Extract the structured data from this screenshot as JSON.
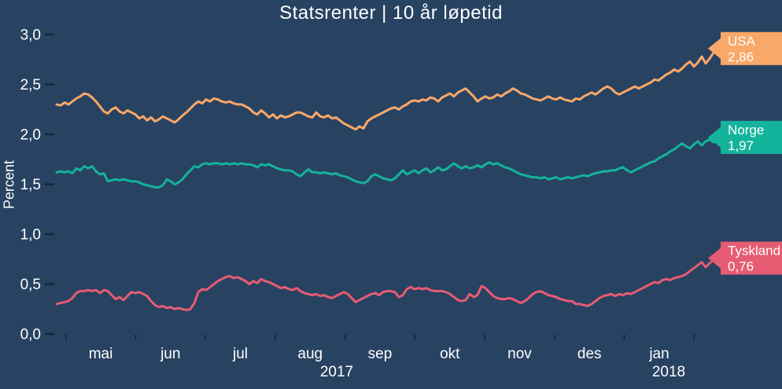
{
  "title": "Statsrenter | 10 år løpetid",
  "colors": {
    "background": "#284262",
    "text": "#ffffff",
    "tick": "#15253a",
    "usa": "#f8a868",
    "norge": "#14b39b",
    "tyskland": "#e65c72"
  },
  "chart_data": {
    "type": "line",
    "title": "Statsrenter | 10 år løpetid",
    "ylabel": "Percent",
    "ylim": [
      0.0,
      3.0
    ],
    "grid": false,
    "legend_position": "right-end-tags",
    "ytick_values": [
      0,
      0.5,
      1,
      1.5,
      2,
      2.5,
      3
    ],
    "ytick_labels": [
      "0,0",
      "0,5",
      "1,0",
      "1,5",
      "2,0",
      "2,5",
      "3,0"
    ],
    "xtick_labels": [
      "mai",
      "jun",
      "jul",
      "aug",
      "sep",
      "okt",
      "nov",
      "des",
      "jan"
    ],
    "year_labels": [
      "2017",
      "2018"
    ],
    "series": [
      {
        "name": "USA",
        "end_label": "2,86",
        "end_value": 2.86,
        "color": "#f8a868",
        "values": [
          2.3,
          2.29,
          2.32,
          2.3,
          2.33,
          2.36,
          2.38,
          2.41,
          2.4,
          2.37,
          2.33,
          2.28,
          2.23,
          2.21,
          2.25,
          2.27,
          2.23,
          2.21,
          2.24,
          2.22,
          2.2,
          2.16,
          2.18,
          2.14,
          2.17,
          2.13,
          2.15,
          2.18,
          2.16,
          2.14,
          2.12,
          2.15,
          2.19,
          2.22,
          2.26,
          2.3,
          2.33,
          2.31,
          2.35,
          2.33,
          2.36,
          2.35,
          2.33,
          2.32,
          2.33,
          2.31,
          2.3,
          2.3,
          2.28,
          2.26,
          2.22,
          2.2,
          2.24,
          2.21,
          2.17,
          2.2,
          2.16,
          2.19,
          2.17,
          2.18,
          2.2,
          2.22,
          2.22,
          2.2,
          2.18,
          2.17,
          2.22,
          2.18,
          2.17,
          2.19,
          2.16,
          2.17,
          2.14,
          2.11,
          2.09,
          2.07,
          2.05,
          2.08,
          2.06,
          2.13,
          2.16,
          2.18,
          2.2,
          2.22,
          2.24,
          2.26,
          2.27,
          2.25,
          2.28,
          2.3,
          2.33,
          2.34,
          2.33,
          2.35,
          2.34,
          2.37,
          2.36,
          2.33,
          2.37,
          2.39,
          2.41,
          2.38,
          2.42,
          2.44,
          2.46,
          2.42,
          2.38,
          2.33,
          2.36,
          2.38,
          2.36,
          2.37,
          2.4,
          2.38,
          2.41,
          2.43,
          2.46,
          2.44,
          2.41,
          2.4,
          2.38,
          2.36,
          2.35,
          2.34,
          2.36,
          2.38,
          2.36,
          2.35,
          2.37,
          2.35,
          2.34,
          2.33,
          2.36,
          2.35,
          2.38,
          2.4,
          2.42,
          2.4,
          2.43,
          2.46,
          2.48,
          2.46,
          2.42,
          2.4,
          2.42,
          2.44,
          2.46,
          2.48,
          2.46,
          2.48,
          2.5,
          2.52,
          2.55,
          2.54,
          2.57,
          2.6,
          2.62,
          2.65,
          2.63,
          2.66,
          2.7,
          2.73,
          2.68,
          2.72,
          2.78,
          2.71,
          2.76,
          2.82,
          2.86
        ]
      },
      {
        "name": "Norge",
        "end_label": "1,97",
        "end_value": 1.97,
        "color": "#14b39b",
        "values": [
          1.62,
          1.63,
          1.62,
          1.63,
          1.61,
          1.66,
          1.64,
          1.68,
          1.66,
          1.68,
          1.63,
          1.6,
          1.61,
          1.53,
          1.54,
          1.55,
          1.54,
          1.55,
          1.54,
          1.53,
          1.53,
          1.52,
          1.5,
          1.49,
          1.48,
          1.47,
          1.47,
          1.49,
          1.55,
          1.53,
          1.5,
          1.52,
          1.55,
          1.6,
          1.64,
          1.68,
          1.67,
          1.7,
          1.71,
          1.7,
          1.71,
          1.71,
          1.7,
          1.71,
          1.7,
          1.71,
          1.7,
          1.71,
          1.7,
          1.7,
          1.69,
          1.67,
          1.7,
          1.69,
          1.7,
          1.68,
          1.66,
          1.65,
          1.64,
          1.64,
          1.63,
          1.6,
          1.58,
          1.62,
          1.65,
          1.62,
          1.62,
          1.61,
          1.62,
          1.61,
          1.6,
          1.61,
          1.59,
          1.58,
          1.57,
          1.55,
          1.53,
          1.52,
          1.51,
          1.53,
          1.58,
          1.6,
          1.58,
          1.56,
          1.55,
          1.54,
          1.56,
          1.6,
          1.64,
          1.6,
          1.62,
          1.64,
          1.61,
          1.64,
          1.66,
          1.62,
          1.64,
          1.67,
          1.64,
          1.65,
          1.68,
          1.71,
          1.68,
          1.66,
          1.68,
          1.66,
          1.67,
          1.69,
          1.67,
          1.7,
          1.72,
          1.7,
          1.71,
          1.69,
          1.67,
          1.66,
          1.64,
          1.62,
          1.6,
          1.59,
          1.58,
          1.57,
          1.57,
          1.56,
          1.57,
          1.55,
          1.56,
          1.57,
          1.55,
          1.56,
          1.57,
          1.56,
          1.57,
          1.58,
          1.59,
          1.58,
          1.6,
          1.61,
          1.62,
          1.63,
          1.63,
          1.64,
          1.64,
          1.66,
          1.67,
          1.64,
          1.62,
          1.64,
          1.66,
          1.68,
          1.7,
          1.72,
          1.73,
          1.76,
          1.78,
          1.8,
          1.83,
          1.85,
          1.88,
          1.91,
          1.88,
          1.86,
          1.9,
          1.93,
          1.89,
          1.93,
          1.95,
          1.92,
          1.97
        ]
      },
      {
        "name": "Tyskland",
        "end_label": "0,76",
        "end_value": 0.76,
        "color": "#e65c72",
        "values": [
          0.3,
          0.31,
          0.32,
          0.33,
          0.36,
          0.41,
          0.43,
          0.43,
          0.44,
          0.43,
          0.44,
          0.41,
          0.44,
          0.43,
          0.39,
          0.35,
          0.37,
          0.34,
          0.38,
          0.42,
          0.41,
          0.42,
          0.4,
          0.38,
          0.33,
          0.29,
          0.27,
          0.28,
          0.26,
          0.27,
          0.25,
          0.26,
          0.25,
          0.24,
          0.25,
          0.31,
          0.42,
          0.45,
          0.44,
          0.47,
          0.5,
          0.53,
          0.55,
          0.57,
          0.58,
          0.56,
          0.57,
          0.55,
          0.53,
          0.5,
          0.53,
          0.51,
          0.55,
          0.53,
          0.52,
          0.5,
          0.48,
          0.46,
          0.47,
          0.45,
          0.44,
          0.46,
          0.43,
          0.41,
          0.4,
          0.39,
          0.4,
          0.38,
          0.39,
          0.37,
          0.36,
          0.38,
          0.4,
          0.42,
          0.4,
          0.36,
          0.32,
          0.34,
          0.36,
          0.38,
          0.4,
          0.41,
          0.39,
          0.42,
          0.43,
          0.43,
          0.42,
          0.37,
          0.39,
          0.45,
          0.47,
          0.45,
          0.46,
          0.45,
          0.46,
          0.44,
          0.43,
          0.43,
          0.43,
          0.42,
          0.4,
          0.37,
          0.34,
          0.33,
          0.34,
          0.4,
          0.37,
          0.39,
          0.48,
          0.46,
          0.42,
          0.38,
          0.36,
          0.35,
          0.35,
          0.36,
          0.35,
          0.33,
          0.31,
          0.33,
          0.36,
          0.4,
          0.42,
          0.43,
          0.41,
          0.39,
          0.38,
          0.37,
          0.35,
          0.34,
          0.33,
          0.33,
          0.3,
          0.3,
          0.29,
          0.28,
          0.3,
          0.33,
          0.36,
          0.38,
          0.39,
          0.4,
          0.38,
          0.4,
          0.39,
          0.41,
          0.4,
          0.42,
          0.44,
          0.46,
          0.48,
          0.5,
          0.52,
          0.51,
          0.54,
          0.55,
          0.54,
          0.56,
          0.57,
          0.58,
          0.6,
          0.63,
          0.66,
          0.69,
          0.72,
          0.67,
          0.71,
          0.74,
          0.76
        ]
      }
    ]
  }
}
